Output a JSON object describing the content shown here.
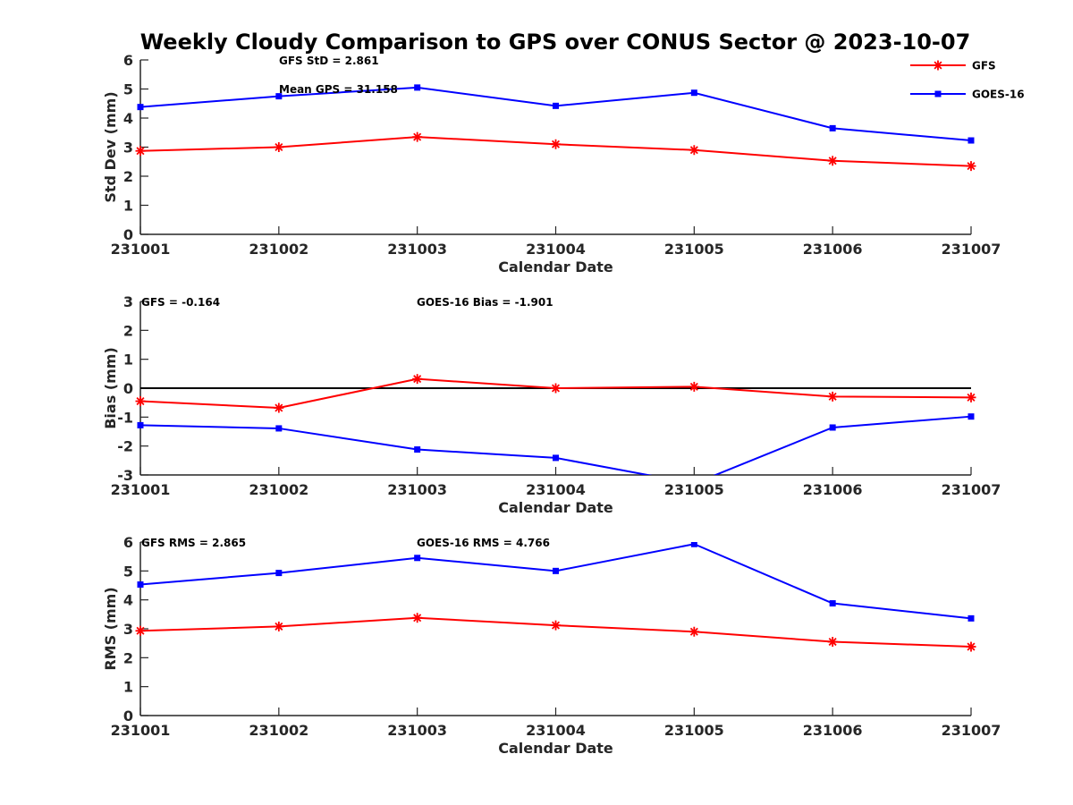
{
  "figure": {
    "title": "Weekly Cloudy Comparison to GPS over CONUS Sector @ 2023-10-07"
  },
  "legend": {
    "placement": "top-right",
    "entries": [
      {
        "name": "GFS",
        "color": "#ff0000",
        "marker": "asterisk"
      },
      {
        "name": "GOES-16",
        "color": "#0000ff",
        "marker": "square"
      }
    ]
  },
  "chart_data": [
    {
      "type": "line",
      "categories": [
        "231001",
        "231002",
        "231003",
        "231004",
        "231005",
        "231006",
        "231007"
      ],
      "xlabel": "Calendar Date",
      "ylabel": "Std Dev (mm)",
      "ylim": [
        0,
        6
      ],
      "yticks": [
        "0",
        "1",
        "2",
        "3",
        "4",
        "5",
        "6"
      ],
      "reference_line": null,
      "annotations": [
        "GFS StD = 2.861",
        "Mean GPS = 31.158"
      ],
      "series": [
        {
          "name": "GFS",
          "color": "#ff0000",
          "marker": "asterisk",
          "values": [
            2.87,
            3.0,
            3.35,
            3.1,
            2.9,
            2.53,
            2.35
          ]
        },
        {
          "name": "GOES-16",
          "color": "#0000ff",
          "marker": "square",
          "values": [
            4.38,
            4.75,
            5.05,
            4.42,
            4.87,
            3.65,
            3.23
          ]
        }
      ]
    },
    {
      "type": "line",
      "categories": [
        "231001",
        "231002",
        "231003",
        "231004",
        "231005",
        "231006",
        "231007"
      ],
      "xlabel": "Calendar Date",
      "ylabel": "Bias (mm)",
      "ylim": [
        -3,
        3
      ],
      "yticks": [
        "-3",
        "-2",
        "-1",
        "0",
        "1",
        "2",
        "3"
      ],
      "reference_line": 0,
      "annotations": [
        "GFS = -0.164",
        "GOES-16 Bias  = -1.901"
      ],
      "series": [
        {
          "name": "GFS",
          "color": "#ff0000",
          "marker": "asterisk",
          "values": [
            -0.45,
            -0.68,
            0.32,
            0.0,
            0.05,
            -0.29,
            -0.32
          ]
        },
        {
          "name": "GOES-16",
          "color": "#0000ff",
          "marker": "square",
          "values": [
            -1.28,
            -1.39,
            -2.12,
            -2.41,
            -3.3,
            -1.36,
            -0.98
          ]
        }
      ]
    },
    {
      "type": "line",
      "categories": [
        "231001",
        "231002",
        "231003",
        "231004",
        "231005",
        "231006",
        "231007"
      ],
      "xlabel": "Calendar Date",
      "ylabel": "RMS (mm)",
      "ylim": [
        0,
        6
      ],
      "yticks": [
        "0",
        "1",
        "2",
        "3",
        "4",
        "5",
        "6"
      ],
      "reference_line": null,
      "annotations": [
        "GFS RMS = 2.865",
        "GOES-16 RMS = 4.766"
      ],
      "series": [
        {
          "name": "GFS",
          "color": "#ff0000",
          "marker": "asterisk",
          "values": [
            2.93,
            3.08,
            3.38,
            3.12,
            2.9,
            2.55,
            2.38
          ]
        },
        {
          "name": "GOES-16",
          "color": "#0000ff",
          "marker": "square",
          "values": [
            4.53,
            4.93,
            5.45,
            5.0,
            5.93,
            3.88,
            3.36
          ]
        }
      ]
    }
  ]
}
